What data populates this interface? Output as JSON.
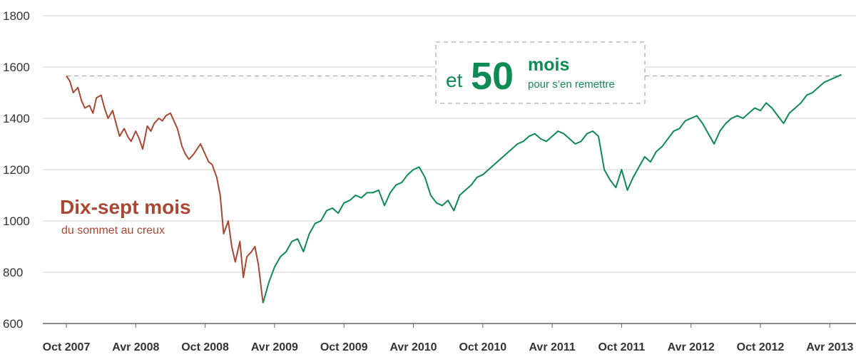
{
  "colors": {
    "decline": "#a84834",
    "recovery": "#0e8a55",
    "grid": "#cfcfcf",
    "text": "#333333",
    "dash": "#999999"
  },
  "chart_data": {
    "type": "line",
    "title": "",
    "xlabel": "",
    "ylabel": "",
    "ylim": [
      600,
      1800
    ],
    "yticks": [
      600,
      800,
      1000,
      1200,
      1400,
      1600,
      1800
    ],
    "xticks": [
      "Oct 2007",
      "Avr 2008",
      "Oct 2008",
      "Avr 2009",
      "Oct 2009",
      "Avr 2010",
      "Oct 2010",
      "Avr 2011",
      "Oct 2011",
      "Avr 2012",
      "Oct 2012",
      "Avr 2013"
    ],
    "x_unit": "months since Oct 2007",
    "grid": true,
    "reference_level": 1565,
    "series": [
      {
        "name": "Dix-sept mois",
        "x": [
          0,
          0.3,
          0.6,
          1,
          1.3,
          1.6,
          2,
          2.3,
          2.6,
          3,
          3.3,
          3.6,
          4,
          4.3,
          4.6,
          5,
          5.3,
          5.6,
          6,
          6.3,
          6.6,
          7,
          7.3,
          7.6,
          8,
          8.3,
          8.6,
          9,
          9.3,
          9.6,
          10,
          10.3,
          10.6,
          11,
          11.3,
          11.6,
          12,
          12.3,
          12.6,
          13,
          13.3,
          13.6,
          14,
          14.3,
          14.6,
          15,
          15.3,
          15.6,
          16,
          16.3,
          16.6,
          17
        ],
        "y": [
          1565,
          1545,
          1500,
          1520,
          1470,
          1440,
          1450,
          1420,
          1480,
          1490,
          1440,
          1400,
          1430,
          1380,
          1330,
          1360,
          1330,
          1310,
          1350,
          1320,
          1280,
          1370,
          1350,
          1380,
          1400,
          1390,
          1410,
          1420,
          1390,
          1360,
          1290,
          1260,
          1240,
          1260,
          1280,
          1300,
          1260,
          1230,
          1220,
          1170,
          1100,
          950,
          1000,
          900,
          840,
          920,
          780,
          860,
          880,
          900,
          830,
          680
        ]
      },
      {
        "name": "et 50 mois",
        "x": [
          17,
          17.5,
          18,
          18.5,
          19,
          19.5,
          20,
          20.5,
          21,
          21.5,
          22,
          22.5,
          23,
          23.5,
          24,
          24.5,
          25,
          25.5,
          26,
          26.5,
          27,
          27.5,
          28,
          28.5,
          29,
          29.5,
          30,
          30.5,
          31,
          31.5,
          32,
          32.5,
          33,
          33.5,
          34,
          34.5,
          35,
          35.5,
          36,
          36.5,
          37,
          37.5,
          38,
          38.5,
          39,
          39.5,
          40,
          40.5,
          41,
          41.5,
          42,
          42.5,
          43,
          43.5,
          44,
          44.5,
          45,
          45.5,
          46,
          46.5,
          47,
          47.5,
          48,
          48.5,
          49,
          49.5,
          50,
          50.5,
          51,
          51.5,
          52,
          52.5,
          53,
          53.5,
          54,
          54.5,
          55,
          55.5,
          56,
          56.5,
          57,
          57.5,
          58,
          58.5,
          59,
          59.5,
          60,
          60.5,
          61,
          61.5,
          62,
          62.5,
          63,
          63.5,
          64,
          64.5,
          65,
          65.5,
          66,
          66.5,
          67
        ],
        "y": [
          680,
          760,
          820,
          860,
          880,
          920,
          930,
          880,
          950,
          990,
          1000,
          1040,
          1050,
          1030,
          1070,
          1080,
          1100,
          1090,
          1110,
          1110,
          1120,
          1060,
          1110,
          1140,
          1150,
          1180,
          1200,
          1210,
          1170,
          1100,
          1070,
          1060,
          1080,
          1040,
          1100,
          1120,
          1140,
          1170,
          1180,
          1200,
          1220,
          1240,
          1260,
          1280,
          1300,
          1310,
          1330,
          1340,
          1320,
          1310,
          1330,
          1350,
          1340,
          1320,
          1300,
          1310,
          1340,
          1350,
          1330,
          1200,
          1160,
          1130,
          1200,
          1120,
          1170,
          1210,
          1250,
          1230,
          1270,
          1290,
          1320,
          1350,
          1360,
          1390,
          1400,
          1410,
          1380,
          1340,
          1300,
          1350,
          1380,
          1400,
          1410,
          1400,
          1420,
          1440,
          1430,
          1460,
          1440,
          1410,
          1380,
          1420,
          1440,
          1460,
          1490,
          1500,
          1520,
          1540,
          1550,
          1560,
          1570
        ]
      }
    ],
    "annotations": {
      "decline_title": "Dix-sept mois",
      "decline_sub": "du sommet au creux",
      "recovery_prefix": "et",
      "recovery_number": "50",
      "recovery_word": "mois",
      "recovery_sub": "pour s’en remettre"
    }
  }
}
